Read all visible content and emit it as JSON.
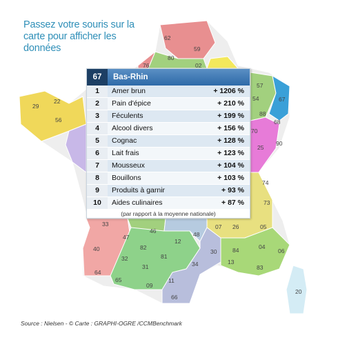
{
  "intro_text": "Passez votre souris sur la carte pour afficher les données",
  "panel": {
    "dept_code": "67",
    "dept_name": "Bas-Rhin",
    "rows": [
      {
        "rank": "1",
        "product": "Amer brun",
        "value": "+ 1206 %"
      },
      {
        "rank": "2",
        "product": "Pain d'épice",
        "value": "+ 210 %"
      },
      {
        "rank": "3",
        "product": "Féculents",
        "value": "+ 199 %"
      },
      {
        "rank": "4",
        "product": "Alcool divers",
        "value": "+ 156 %"
      },
      {
        "rank": "5",
        "product": "Cognac",
        "value": "+ 128 %"
      },
      {
        "rank": "6",
        "product": "Lait frais",
        "value": "+ 123 %"
      },
      {
        "rank": "7",
        "product": "Mousseux",
        "value": "+ 104 %"
      },
      {
        "rank": "8",
        "product": "Bouillons",
        "value": "+ 103 %"
      },
      {
        "rank": "9",
        "product": "Produits à garnir",
        "value": "+ 93 %"
      },
      {
        "rank": "10",
        "product": "Aides culinaires",
        "value": "+ 87 %"
      }
    ],
    "note": "(par rapport à la moyenne nationale)"
  },
  "map_labels": [
    "62",
    "59",
    "80",
    "02",
    "76",
    "57",
    "54",
    "67",
    "68",
    "70",
    "88",
    "90",
    "25",
    "29",
    "22",
    "56",
    "74",
    "73",
    "33",
    "47",
    "46",
    "12",
    "48",
    "07",
    "26",
    "05",
    "40",
    "82",
    "81",
    "30",
    "84",
    "04",
    "06",
    "32",
    "31",
    "34",
    "13",
    "83",
    "64",
    "65",
    "09",
    "11",
    "66",
    "20"
  ],
  "colors": {
    "intro_text": "#2f8fb8",
    "panel_header": "#2e6aa8",
    "highlight_dept": "#3aa0d8"
  },
  "source": "Source : Nielsen - © Carte : GRAPHI-OGRE /CCMBenchmark"
}
